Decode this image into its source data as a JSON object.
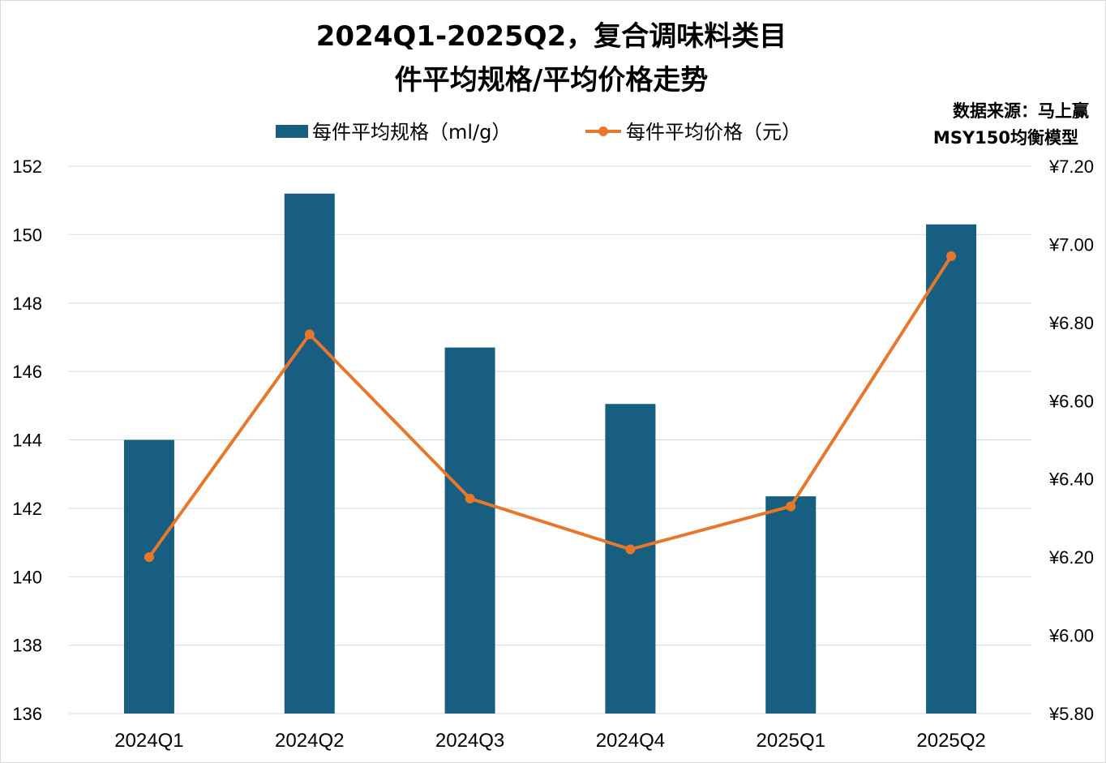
{
  "chart_data": {
    "type": "bar+line",
    "title_line1": "2024Q1-2025Q2，复合调味料类目",
    "title_line2": "件平均规格/平均价格走势",
    "source_line1": "数据来源：马上赢",
    "source_line2": "MSY150均衡模型",
    "categories": [
      "2024Q1",
      "2024Q2",
      "2024Q3",
      "2024Q4",
      "2025Q1",
      "2025Q2"
    ],
    "series": [
      {
        "name": "每件平均规格（ml/g）",
        "type": "bar",
        "axis": "left",
        "color": "#175e80",
        "values": [
          144.0,
          151.2,
          146.7,
          145.05,
          142.35,
          150.3
        ]
      },
      {
        "name": "每件平均价格（元）",
        "type": "line",
        "axis": "right",
        "color": "#e8772e",
        "values": [
          6.2,
          6.77,
          6.35,
          6.22,
          6.33,
          6.97
        ]
      }
    ],
    "y_left": {
      "min": 136,
      "max": 152,
      "ticks": [
        "136",
        "138",
        "140",
        "142",
        "144",
        "146",
        "148",
        "150",
        "152"
      ]
    },
    "y_right": {
      "min": 5.8,
      "max": 7.2,
      "ticks": [
        "¥5.80",
        "¥6.00",
        "¥6.20",
        "¥6.40",
        "¥6.60",
        "¥6.80",
        "¥7.00",
        "¥7.20"
      ]
    },
    "grid": true,
    "legend_position": "top-center"
  }
}
